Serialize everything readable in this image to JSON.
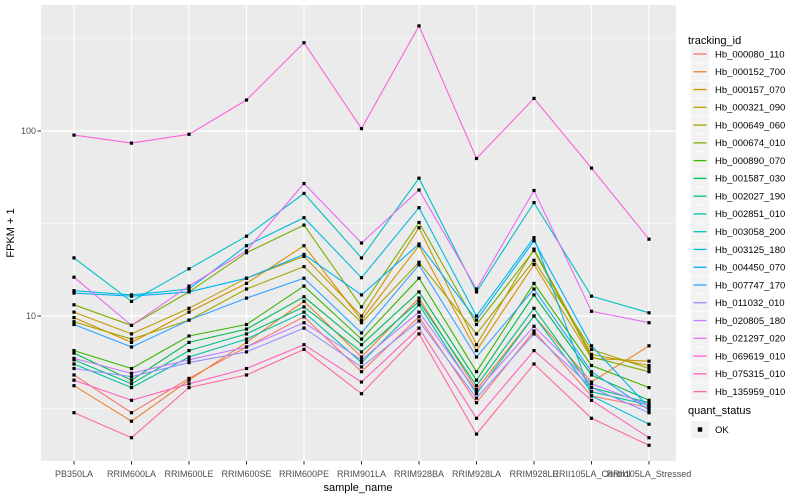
{
  "figure": {
    "background": "#FFFFFF",
    "panel_background": "#EBEBEB",
    "grid_color": "#FFFFFF",
    "axis_text_color": "#4D4D4D",
    "point_color": "#000000",
    "legend_key_background": "#F2F2F2"
  },
  "legend": {
    "tracking_title": "tracking_id",
    "quant_title": "quant_status",
    "quant_items": [
      {
        "label": "OK",
        "symbol": "black-square"
      }
    ]
  },
  "chart_data": {
    "type": "line",
    "title": "",
    "xlabel": "sample_name",
    "ylabel": "FPKM + 1",
    "legend_position": "right",
    "grid": true,
    "x_categories": [
      "PB350LA",
      "RRIM600LA",
      "RRIM600LE",
      "RRIM600SE",
      "RRIM600PE",
      "RRIM901LA",
      "RRIM928BA",
      "RRIM928LA",
      "RRIM928LE",
      "RRII105LA_Control",
      "RRII105LA_Stressed"
    ],
    "y_axis": {
      "scale": "log10",
      "tick_values": [
        10,
        100
      ],
      "tick_labels": [
        "10",
        "100"
      ],
      "minor_gridline_values": [
        3.162,
        31.62,
        316.2
      ],
      "range_approx": [
        1.6,
        470
      ]
    },
    "point_marker": {
      "shape": "square",
      "color": "#000000",
      "status_label": "OK"
    },
    "series": [
      {
        "name": "Hb_000080_110",
        "color": "#F8766D",
        "values": [
          4.8,
          3.0,
          4.6,
          6.8,
          9.9,
          5.0,
          9.9,
          3.4,
          8.3,
          3.7,
          3.2
        ]
      },
      {
        "name": "Hb_000152_700",
        "color": "#EA8331",
        "values": [
          4.2,
          2.7,
          4.5,
          7.2,
          12.0,
          6.0,
          12.5,
          4.0,
          10.0,
          4.4,
          6.9
        ]
      },
      {
        "name": "Hb_000157_070",
        "color": "#D89000",
        "values": [
          9.8,
          7.2,
          10.5,
          15.0,
          24.0,
          9.5,
          24.0,
          6.5,
          19.0,
          5.9,
          5.7
        ]
      },
      {
        "name": "Hb_000321_090",
        "color": "#C09B00",
        "values": [
          10.5,
          8.0,
          11.0,
          16.0,
          21.0,
          10.0,
          30.0,
          7.0,
          23.0,
          6.2,
          5.4
        ]
      },
      {
        "name": "Hb_000649_060",
        "color": "#A3A500",
        "values": [
          9.3,
          7.5,
          9.5,
          14.0,
          18.5,
          9.2,
          19.5,
          8.0,
          20.0,
          6.6,
          5.2
        ]
      },
      {
        "name": "Hb_000674_010",
        "color": "#7CAE00",
        "values": [
          11.5,
          8.9,
          13.5,
          22.0,
          31.0,
          11.2,
          32.0,
          9.0,
          22.6,
          6.0,
          5.0
        ]
      },
      {
        "name": "Hb_000890_070",
        "color": "#39B600",
        "values": [
          6.5,
          5.2,
          7.8,
          9.0,
          14.5,
          7.5,
          16.0,
          5.0,
          15.0,
          5.4,
          4.1
        ]
      },
      {
        "name": "Hb_001587_030",
        "color": "#00BB4E",
        "values": [
          6.3,
          4.5,
          7.2,
          8.5,
          12.7,
          7.0,
          13.5,
          4.5,
          13.0,
          4.8,
          3.5
        ]
      },
      {
        "name": "Hb_002027_190",
        "color": "#00BF7D",
        "values": [
          5.8,
          4.3,
          6.5,
          8.0,
          11.2,
          6.4,
          12.0,
          4.2,
          11.0,
          4.1,
          3.4
        ]
      },
      {
        "name": "Hb_002851_010",
        "color": "#00C1A3",
        "values": [
          5.5,
          4.1,
          6.0,
          7.5,
          10.5,
          5.6,
          11.5,
          3.8,
          10.0,
          3.9,
          3.3
        ]
      },
      {
        "name": "Hb_003058_200",
        "color": "#00BFC4",
        "values": [
          20.6,
          12.0,
          18.0,
          27.0,
          46.0,
          20.6,
          55.6,
          13.5,
          41.0,
          12.8,
          10.4
        ]
      },
      {
        "name": "Hb_003125_180",
        "color": "#00BAE0",
        "values": [
          13.7,
          13.0,
          14.0,
          24.0,
          34.0,
          16.1,
          38.5,
          10.0,
          26.5,
          3.7,
          2.6
        ]
      },
      {
        "name": "Hb_004450_070",
        "color": "#00B0F6",
        "values": [
          13.3,
          12.8,
          13.5,
          16.0,
          21.5,
          13.0,
          24.5,
          9.5,
          25.5,
          6.9,
          3.2
        ]
      },
      {
        "name": "Hb_007747_170",
        "color": "#35A2FF",
        "values": [
          9.0,
          6.8,
          9.5,
          12.5,
          16.0,
          8.1,
          18.9,
          6.0,
          14.0,
          5.0,
          3.1
        ]
      },
      {
        "name": "Hb_011032_010",
        "color": "#9590FF",
        "values": [
          5.2,
          4.7,
          5.6,
          6.4,
          8.6,
          5.3,
          9.4,
          3.6,
          8.0,
          4.1,
          3.0
        ]
      },
      {
        "name": "Hb_020805_180",
        "color": "#C77CFF",
        "values": [
          5.9,
          4.9,
          5.8,
          6.8,
          9.2,
          5.8,
          10.5,
          3.9,
          8.8,
          4.3,
          3.3
        ]
      },
      {
        "name": "Hb_021297_020",
        "color": "#E76BF3",
        "values": [
          16.2,
          8.9,
          14.5,
          22.5,
          52.0,
          24.8,
          48.0,
          14.0,
          47.7,
          10.6,
          9.2
        ]
      },
      {
        "name": "Hb_069619_010",
        "color": "#FA62DB",
        "values": [
          95,
          86,
          96,
          147,
          300,
          103,
          370,
          71,
          150,
          63,
          26
        ]
      },
      {
        "name": "Hb_075315_010",
        "color": "#FF62BC",
        "values": [
          4.5,
          3.5,
          4.3,
          5.2,
          7.0,
          4.4,
          8.6,
          2.8,
          6.5,
          3.5,
          2.2
        ]
      },
      {
        "name": "Hb_135959_010",
        "color": "#FF6A98",
        "values": [
          3.0,
          2.2,
          4.1,
          4.8,
          6.6,
          3.8,
          8.0,
          2.3,
          5.5,
          2.8,
          2.0
        ]
      }
    ]
  }
}
